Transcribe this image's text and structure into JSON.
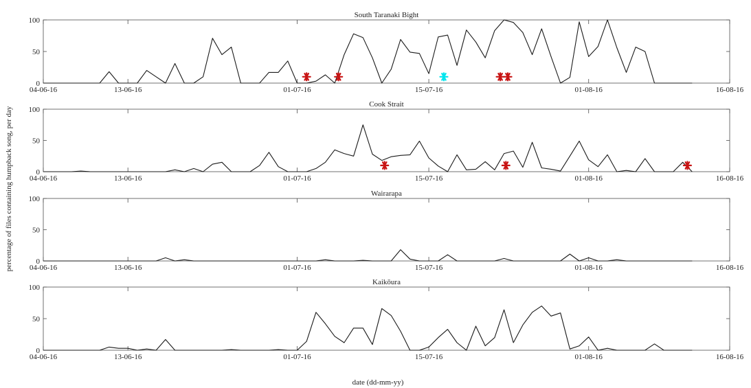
{
  "figure": {
    "ylabel": "percentage of files containing humpback song, per day",
    "xlabel": "date (dd-mm-yy)"
  },
  "chart_data": [
    {
      "type": "line",
      "title": "South Taranaki Bight",
      "x_start": "04-06-16",
      "x_ticks": [
        "04-06-16",
        "13-06-16",
        "01-07-16",
        "15-07-16",
        "01-08-16",
        "16-08-16"
      ],
      "xlim": [
        "04-06-16",
        "16-08-16"
      ],
      "y_ticks": [
        "0",
        "50",
        "100"
      ],
      "ylim": [
        0,
        100
      ],
      "grid": false,
      "series": [
        {
          "values": [
            0,
            0,
            0,
            0,
            0,
            0,
            0,
            18,
            0,
            0,
            0,
            20,
            10,
            0,
            31,
            0,
            0,
            10,
            71,
            45,
            57,
            0,
            0,
            0,
            17,
            17,
            35,
            0,
            0,
            3,
            13,
            0,
            45,
            78,
            72,
            40,
            0,
            22,
            69,
            49,
            47,
            15,
            73,
            76,
            28,
            84,
            65,
            40,
            83,
            100,
            96,
            80,
            45,
            86,
            42,
            0,
            9,
            97,
            42,
            58,
            100,
            56,
            17,
            57,
            50,
            0,
            0,
            0,
            0,
            0
          ]
        }
      ],
      "markers": [
        {
          "day": 28.0,
          "value": 10,
          "color": "#c81414"
        },
        {
          "day": 31.4,
          "value": 10,
          "color": "#c81414"
        },
        {
          "day": 42.6,
          "value": 10,
          "color": "#00e5ee"
        },
        {
          "day": 48.6,
          "value": 10,
          "color": "#c81414"
        },
        {
          "day": 49.4,
          "value": 10,
          "color": "#c81414"
        }
      ]
    },
    {
      "type": "line",
      "title": "Cook Strait",
      "x_start": "04-06-16",
      "x_ticks": [
        "04-06-16",
        "13-06-16",
        "01-07-16",
        "15-07-16",
        "01-08-16",
        "16-08-16"
      ],
      "xlim": [
        "04-06-16",
        "16-08-16"
      ],
      "y_ticks": [
        "0",
        "50",
        "100"
      ],
      "ylim": [
        0,
        100
      ],
      "grid": false,
      "series": [
        {
          "values": [
            0,
            0,
            0,
            0,
            1,
            0,
            0,
            0,
            0,
            0,
            0,
            0,
            0,
            0,
            3,
            0,
            5,
            0,
            12,
            15,
            0,
            0,
            0,
            10,
            31,
            8,
            0,
            0,
            0,
            5,
            15,
            35,
            29,
            25,
            75,
            28,
            18,
            24,
            26,
            27,
            49,
            22,
            9,
            0,
            27,
            3,
            4,
            16,
            3,
            29,
            33,
            7,
            47,
            6,
            4,
            1,
            25,
            49,
            19,
            8,
            27,
            0,
            2,
            0,
            21,
            0,
            0,
            0,
            15,
            0
          ]
        }
      ],
      "markers": [
        {
          "day": 36.3,
          "value": 10,
          "color": "#c81414"
        },
        {
          "day": 49.2,
          "value": 10,
          "color": "#c81414"
        },
        {
          "day": 68.5,
          "value": 10,
          "color": "#c81414"
        }
      ]
    },
    {
      "type": "line",
      "title": "Wairarapa",
      "x_start": "04-06-16",
      "x_ticks": [
        "04-06-16",
        "13-06-16",
        "01-07-16",
        "15-07-16",
        "01-08-16",
        "16-08-16"
      ],
      "xlim": [
        "04-06-16",
        "16-08-16"
      ],
      "y_ticks": [
        "0",
        "50",
        "100"
      ],
      "ylim": [
        0,
        100
      ],
      "grid": false,
      "series": [
        {
          "values": [
            0,
            0,
            0,
            0,
            0,
            0,
            0,
            0,
            0,
            0,
            0,
            0,
            0,
            5,
            0,
            2,
            0,
            0,
            0,
            0,
            0,
            0,
            0,
            0,
            0,
            0,
            0,
            0,
            0,
            0,
            2,
            0,
            0,
            0,
            1,
            0,
            0,
            0,
            18,
            3,
            0,
            0,
            0,
            10,
            0,
            0,
            0,
            0,
            0,
            4,
            0,
            0,
            0,
            0,
            0,
            0,
            11,
            0,
            5,
            0,
            0,
            2,
            0,
            0,
            0,
            0,
            0,
            0,
            0,
            0
          ]
        }
      ],
      "markers": []
    },
    {
      "type": "line",
      "title": "Kaikōura",
      "x_start": "04-06-16",
      "x_ticks": [
        "04-06-16",
        "13-06-16",
        "01-07-16",
        "15-07-16",
        "01-08-16",
        "16-08-16"
      ],
      "xlim": [
        "04-06-16",
        "16-08-16"
      ],
      "y_ticks": [
        "0",
        "50",
        "100"
      ],
      "ylim": [
        0,
        100
      ],
      "grid": false,
      "series": [
        {
          "values": [
            0,
            0,
            0,
            0,
            0,
            0,
            0,
            5,
            3,
            3,
            0,
            2,
            0,
            17,
            0,
            0,
            0,
            0,
            0,
            0,
            1,
            0,
            0,
            0,
            0,
            1,
            0,
            0,
            14,
            60,
            42,
            22,
            12,
            35,
            35,
            9,
            66,
            55,
            30,
            0,
            0,
            5,
            20,
            33,
            12,
            0,
            38,
            7,
            20,
            64,
            12,
            40,
            60,
            70,
            54,
            59,
            2,
            7,
            21,
            0,
            3,
            0,
            0,
            0,
            0,
            10,
            0,
            0,
            0,
            0
          ]
        }
      ],
      "markers": []
    }
  ]
}
